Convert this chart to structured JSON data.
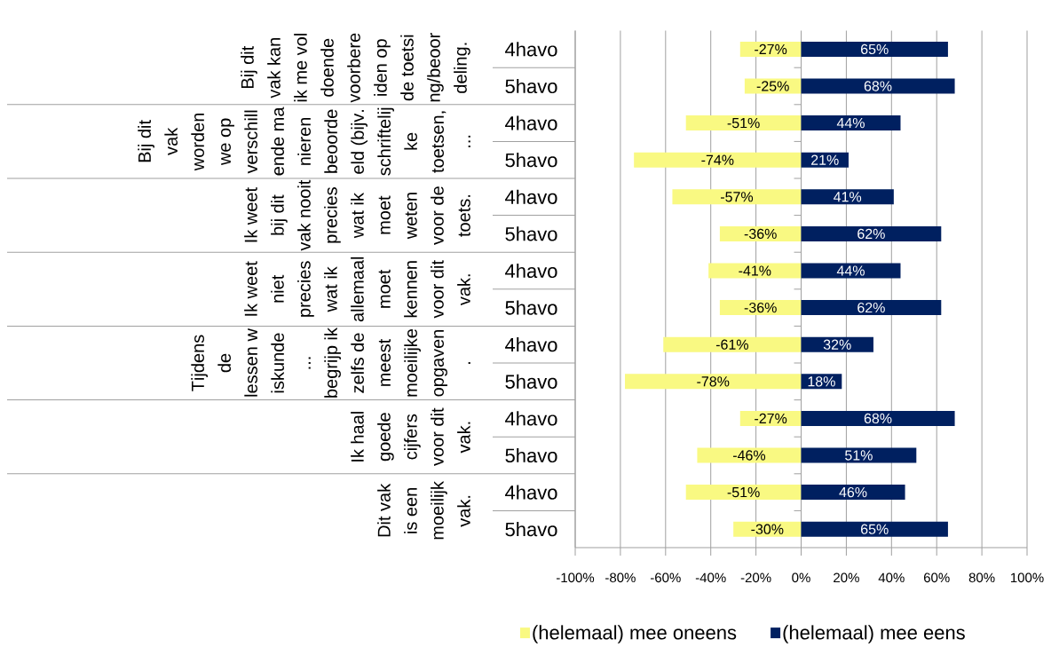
{
  "chart_data": {
    "type": "bar",
    "orientation": "horizontal",
    "stacked": true,
    "categories": [
      "4havo",
      "5havo",
      "4havo",
      "5havo",
      "4havo",
      "5havo",
      "4havo",
      "5havo",
      "4havo",
      "5havo",
      "4havo",
      "5havo",
      "4havo",
      "5havo"
    ],
    "series": [
      {
        "name": "(helemaal) mee oneens",
        "color": "#F9F982",
        "values": [
          -27,
          -25,
          -51,
          -74,
          -57,
          -36,
          -41,
          -36,
          -61,
          -78,
          -27,
          -46,
          -51,
          -30
        ],
        "value_labels": [
          "-27%",
          "-25%",
          "-51%",
          "-74%",
          "-57%",
          "-36%",
          "-41%",
          "-36%",
          "-61%",
          "-78%",
          "-27%",
          "-46%",
          "-51%",
          "-30%"
        ]
      },
      {
        "name": "(helemaal) mee eens",
        "color": "#002060",
        "values": [
          65,
          68,
          44,
          21,
          41,
          62,
          44,
          62,
          32,
          18,
          68,
          51,
          46,
          65
        ],
        "value_labels": [
          "65%",
          "68%",
          "44%",
          "21%",
          "41%",
          "62%",
          "44%",
          "62%",
          "32%",
          "18%",
          "68%",
          "51%",
          "46%",
          "65%"
        ]
      }
    ],
    "xlim": [
      -100,
      100
    ],
    "xticks": [
      {
        "value": -100,
        "label": "-100%"
      },
      {
        "value": -80,
        "label": "-80%"
      },
      {
        "value": -60,
        "label": "-60%"
      },
      {
        "value": -40,
        "label": "-40%"
      },
      {
        "value": -20,
        "label": "-20%"
      },
      {
        "value": 0,
        "label": "0%"
      },
      {
        "value": 20,
        "label": "20%"
      },
      {
        "value": 40,
        "label": "40%"
      },
      {
        "value": 60,
        "label": "60%"
      },
      {
        "value": 80,
        "label": "80%"
      },
      {
        "value": 100,
        "label": "100%"
      }
    ],
    "grid": "x",
    "legend": "bottom",
    "annotations": [
      "Bij dit vak kan ik me voldoende voorbereiden op de toetsing/beoordeling.",
      "Bij dit vak worden we op verschillende manieren beoordeeld (bijv. schriftelijke toetsen, ...",
      "Ik weet bij dit vak nooit precies wat ik moet weten voor de toets.",
      "Ik weet niet precies wat ik allemaal moet kennen voor dit vak.",
      "Tijdens de lessen wiskunde ... begrijp ik zelfs de meest moeilijke opgaven.",
      "Ik haal goede cijfers voor dit vak.",
      "Dit vak is een moeilijk vak."
    ]
  }
}
